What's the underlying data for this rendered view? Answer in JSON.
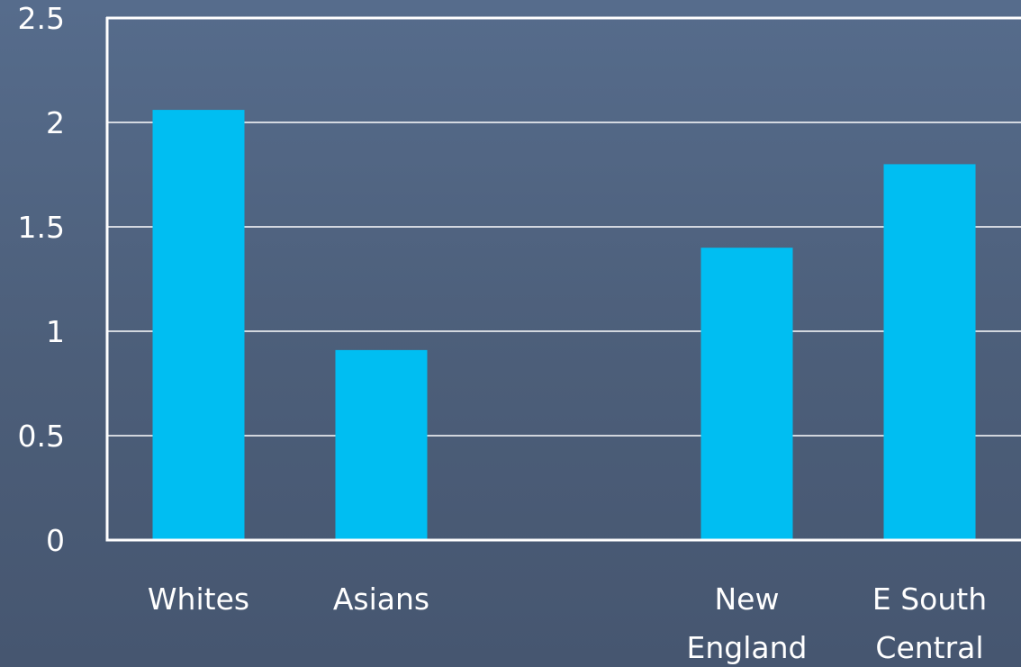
{
  "chart_data": {
    "type": "bar",
    "title": "",
    "xlabel": "",
    "ylabel": "",
    "categories": [
      [
        "Whites"
      ],
      [
        "Asians"
      ],
      [],
      [
        "New",
        "England"
      ],
      [
        "E South",
        "Central"
      ]
    ],
    "values": [
      2.06,
      0.91,
      null,
      1.4,
      1.8
    ],
    "ylim": [
      0,
      2.5
    ],
    "yticks": [
      "0",
      "0.5",
      "1",
      "1.5",
      "2",
      "2.5"
    ],
    "grid": true,
    "colors": {
      "bar": "#00bef2",
      "axis": "#ffffff",
      "grid": "#ffffff",
      "text": "#ffffff"
    }
  }
}
